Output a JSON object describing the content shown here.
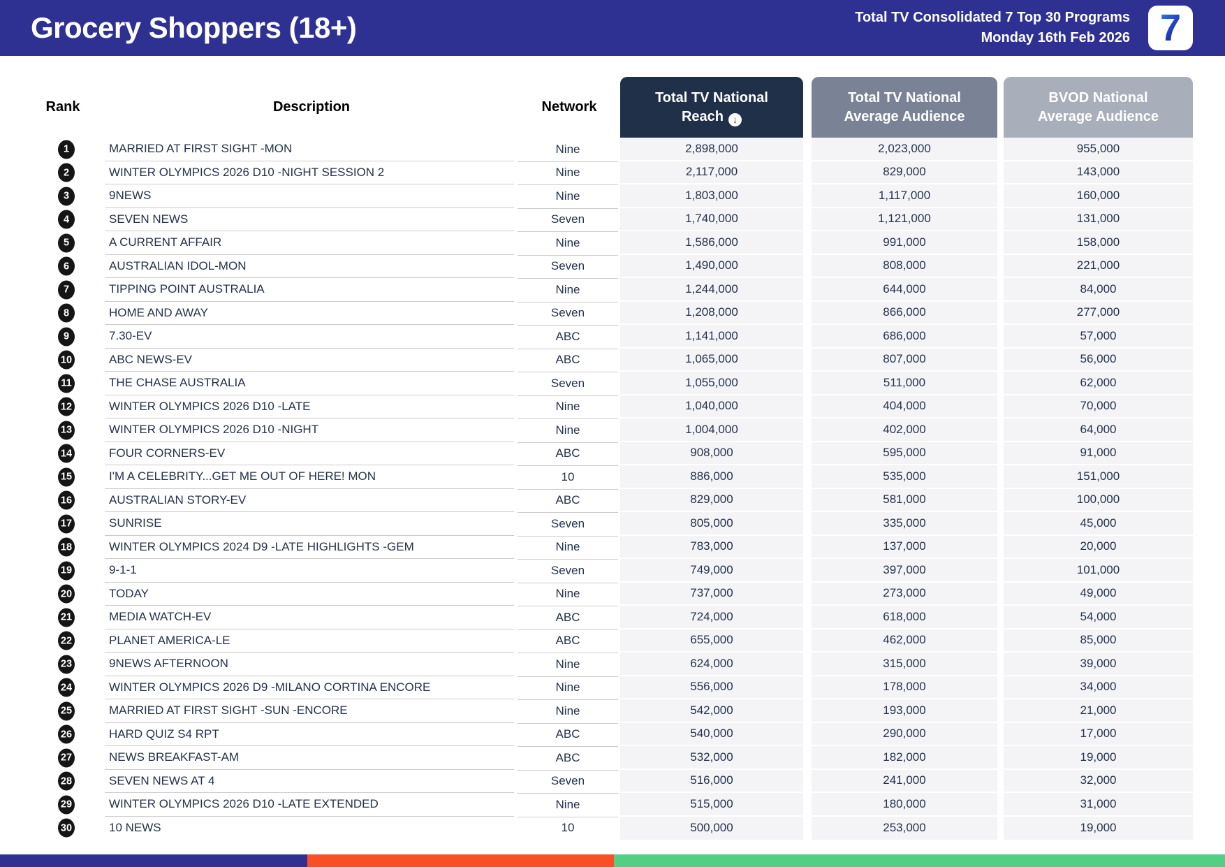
{
  "header": {
    "title": "Grocery Shoppers (18+)",
    "subtitle_line1": "Total TV Consolidated 7 Top 30 Programs",
    "subtitle_line2": "Monday 16th Feb 2026",
    "logo_text": "7"
  },
  "table": {
    "columns": {
      "rank": "Rank",
      "description": "Description",
      "network": "Network",
      "reach_line1": "Total TV National",
      "reach_line2": "Reach",
      "reach_sort_icon": "sort-descending-icon",
      "reach_sort_glyph": "↓",
      "avg_line1": "Total TV National",
      "avg_line2": "Average Audience",
      "bvod_line1": "BVOD National",
      "bvod_line2": "Average Audience"
    },
    "rows": [
      {
        "rank": "1",
        "description": "MARRIED AT FIRST SIGHT -MON",
        "network": "Nine",
        "reach": "2,898,000",
        "avg_audience": "2,023,000",
        "bvod": "955,000"
      },
      {
        "rank": "2",
        "description": "WINTER OLYMPICS 2026 D10 -NIGHT SESSION 2",
        "network": "Nine",
        "reach": "2,117,000",
        "avg_audience": "829,000",
        "bvod": "143,000"
      },
      {
        "rank": "3",
        "description": "9NEWS",
        "network": "Nine",
        "reach": "1,803,000",
        "avg_audience": "1,117,000",
        "bvod": "160,000"
      },
      {
        "rank": "4",
        "description": "SEVEN NEWS",
        "network": "Seven",
        "reach": "1,740,000",
        "avg_audience": "1,121,000",
        "bvod": "131,000"
      },
      {
        "rank": "5",
        "description": "A CURRENT AFFAIR",
        "network": "Nine",
        "reach": "1,586,000",
        "avg_audience": "991,000",
        "bvod": "158,000"
      },
      {
        "rank": "6",
        "description": "AUSTRALIAN IDOL-MON",
        "network": "Seven",
        "reach": "1,490,000",
        "avg_audience": "808,000",
        "bvod": "221,000"
      },
      {
        "rank": "7",
        "description": "TIPPING POINT AUSTRALIA",
        "network": "Nine",
        "reach": "1,244,000",
        "avg_audience": "644,000",
        "bvod": "84,000"
      },
      {
        "rank": "8",
        "description": "HOME AND AWAY",
        "network": "Seven",
        "reach": "1,208,000",
        "avg_audience": "866,000",
        "bvod": "277,000"
      },
      {
        "rank": "9",
        "description": "7.30-EV",
        "network": "ABC",
        "reach": "1,141,000",
        "avg_audience": "686,000",
        "bvod": "57,000"
      },
      {
        "rank": "10",
        "description": "ABC NEWS-EV",
        "network": "ABC",
        "reach": "1,065,000",
        "avg_audience": "807,000",
        "bvod": "56,000"
      },
      {
        "rank": "11",
        "description": "THE CHASE AUSTRALIA",
        "network": "Seven",
        "reach": "1,055,000",
        "avg_audience": "511,000",
        "bvod": "62,000"
      },
      {
        "rank": "12",
        "description": "WINTER OLYMPICS 2026 D10 -LATE",
        "network": "Nine",
        "reach": "1,040,000",
        "avg_audience": "404,000",
        "bvod": "70,000"
      },
      {
        "rank": "13",
        "description": "WINTER OLYMPICS 2026 D10 -NIGHT",
        "network": "Nine",
        "reach": "1,004,000",
        "avg_audience": "402,000",
        "bvod": "64,000"
      },
      {
        "rank": "14",
        "description": "FOUR CORNERS-EV",
        "network": "ABC",
        "reach": "908,000",
        "avg_audience": "595,000",
        "bvod": "91,000"
      },
      {
        "rank": "15",
        "description": "I'M A CELEBRITY...GET ME OUT OF HERE! MON",
        "network": "10",
        "reach": "886,000",
        "avg_audience": "535,000",
        "bvod": "151,000"
      },
      {
        "rank": "16",
        "description": "AUSTRALIAN STORY-EV",
        "network": "ABC",
        "reach": "829,000",
        "avg_audience": "581,000",
        "bvod": "100,000"
      },
      {
        "rank": "17",
        "description": "SUNRISE",
        "network": "Seven",
        "reach": "805,000",
        "avg_audience": "335,000",
        "bvod": "45,000"
      },
      {
        "rank": "18",
        "description": "WINTER OLYMPICS 2024 D9 -LATE HIGHLIGHTS -GEM",
        "network": "Nine",
        "reach": "783,000",
        "avg_audience": "137,000",
        "bvod": "20,000"
      },
      {
        "rank": "19",
        "description": "9-1-1",
        "network": "Seven",
        "reach": "749,000",
        "avg_audience": "397,000",
        "bvod": "101,000"
      },
      {
        "rank": "20",
        "description": "TODAY",
        "network": "Nine",
        "reach": "737,000",
        "avg_audience": "273,000",
        "bvod": "49,000"
      },
      {
        "rank": "21",
        "description": "MEDIA WATCH-EV",
        "network": "ABC",
        "reach": "724,000",
        "avg_audience": "618,000",
        "bvod": "54,000"
      },
      {
        "rank": "22",
        "description": "PLANET AMERICA-LE",
        "network": "ABC",
        "reach": "655,000",
        "avg_audience": "462,000",
        "bvod": "85,000"
      },
      {
        "rank": "23",
        "description": "9NEWS AFTERNOON",
        "network": "Nine",
        "reach": "624,000",
        "avg_audience": "315,000",
        "bvod": "39,000"
      },
      {
        "rank": "24",
        "description": "WINTER OLYMPICS 2026 D9 -MILANO CORTINA ENCORE",
        "network": "Nine",
        "reach": "556,000",
        "avg_audience": "178,000",
        "bvod": "34,000"
      },
      {
        "rank": "25",
        "description": "MARRIED AT FIRST SIGHT -SUN -ENCORE",
        "network": "Nine",
        "reach": "542,000",
        "avg_audience": "193,000",
        "bvod": "21,000"
      },
      {
        "rank": "26",
        "description": "HARD QUIZ S4 RPT",
        "network": "ABC",
        "reach": "540,000",
        "avg_audience": "290,000",
        "bvod": "17,000"
      },
      {
        "rank": "27",
        "description": "NEWS BREAKFAST-AM",
        "network": "ABC",
        "reach": "532,000",
        "avg_audience": "182,000",
        "bvod": "19,000"
      },
      {
        "rank": "28",
        "description": "SEVEN NEWS AT 4",
        "network": "Seven",
        "reach": "516,000",
        "avg_audience": "241,000",
        "bvod": "32,000"
      },
      {
        "rank": "29",
        "description": "WINTER OLYMPICS 2026 D10 -LATE EXTENDED",
        "network": "Nine",
        "reach": "515,000",
        "avg_audience": "180,000",
        "bvod": "31,000"
      },
      {
        "rank": "30",
        "description": "10 NEWS",
        "network": "10",
        "reach": "500,000",
        "avg_audience": "253,000",
        "bvod": "19,000"
      }
    ]
  },
  "footer_bar": {
    "segments": [
      {
        "name": "blue",
        "color": "#2E3192",
        "width": "25.1%"
      },
      {
        "name": "orange",
        "color": "#F94E26",
        "width": "25.0%"
      },
      {
        "name": "green",
        "color": "#53CF83",
        "width": "49.9%"
      }
    ]
  },
  "colors": {
    "header_background": "#2E3192",
    "reach_column_header": "#203049",
    "avg_column_header": "#7A8396",
    "bvod_column_header": "#A8AEBA",
    "value_cell_background": "#F4F4F7",
    "table_text": "#24324A",
    "rank_badge": "#151515",
    "logo_seven_blue_top": "#3D7BFF",
    "logo_seven_blue_bottom": "#0F1E96"
  }
}
